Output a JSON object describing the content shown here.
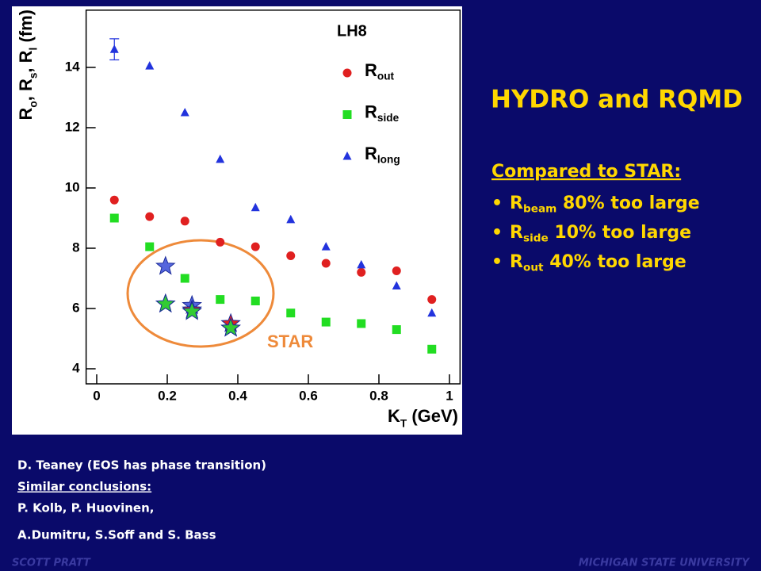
{
  "title": "HYDRO and RQMD",
  "bullets_heading": "Compared to STAR:",
  "bullets": [
    "Rbeam 80% too large",
    "Rside 10% too large",
    "Rout 40% too large"
  ],
  "notes": [
    "D. Teaney (EOS has phase transition)",
    "Similar conclusions:",
    "P. Kolb, P. Huovinen,",
    "A.Dumitru, S.Soff and S. Bass"
  ],
  "footer": {
    "left": "SCOTT PRATT",
    "right": "MICHIGAN STATE UNIVERSITY"
  },
  "chart_data": {
    "type": "scatter",
    "label": "LH8",
    "annotation": "STAR",
    "xlabel": "KT (GeV)",
    "ylabel": "Ro, Rs, Rl (fm)",
    "xlim": [
      -0.03,
      1.03
    ],
    "ylim": [
      3.5,
      15.9
    ],
    "xticks": [
      0,
      0.2,
      0.4,
      0.6,
      0.8,
      1
    ],
    "yticks": [
      4,
      6,
      8,
      10,
      12,
      14
    ],
    "series": [
      {
        "name": "Rout",
        "color": "#e02020",
        "marker": "circle",
        "x": [
          0.05,
          0.15,
          0.25,
          0.35,
          0.45,
          0.55,
          0.65,
          0.75,
          0.85,
          0.95
        ],
        "values": [
          9.6,
          9.05,
          8.9,
          8.2,
          8.05,
          7.75,
          7.5,
          7.2,
          7.25,
          6.3
        ]
      },
      {
        "name": "Rside",
        "color": "#22dd22",
        "marker": "square",
        "x": [
          0.05,
          0.15,
          0.25,
          0.35,
          0.45,
          0.55,
          0.65,
          0.75,
          0.85,
          0.95
        ],
        "values": [
          9.0,
          8.05,
          7.0,
          6.3,
          6.25,
          5.85,
          5.55,
          5.5,
          5.3,
          4.65
        ]
      },
      {
        "name": "Rlong",
        "color": "#2233dd",
        "marker": "triangle",
        "x": [
          0.05,
          0.15,
          0.25,
          0.35,
          0.45,
          0.55,
          0.65,
          0.75,
          0.85,
          0.95
        ],
        "values": [
          14.6,
          14.05,
          12.5,
          10.95,
          9.35,
          8.95,
          8.05,
          7.45,
          6.75,
          5.85
        ],
        "errors": [
          0.35,
          null,
          null,
          null,
          null,
          null,
          null,
          null,
          null,
          null
        ]
      },
      {
        "color": "#5566dd",
        "marker": "star",
        "x": [
          0.195,
          0.27,
          0.38
        ],
        "values": [
          7.4,
          6.1,
          5.35
        ]
      },
      {
        "color": "#dd2222",
        "marker": "star",
        "x": [
          0.195,
          0.27,
          0.38
        ],
        "values": [
          6.15,
          5.95,
          5.5
        ]
      },
      {
        "color": "#33cc33",
        "marker": "star",
        "x": [
          0.195,
          0.27,
          0.38
        ],
        "values": [
          6.15,
          5.9,
          5.35
        ]
      }
    ]
  }
}
